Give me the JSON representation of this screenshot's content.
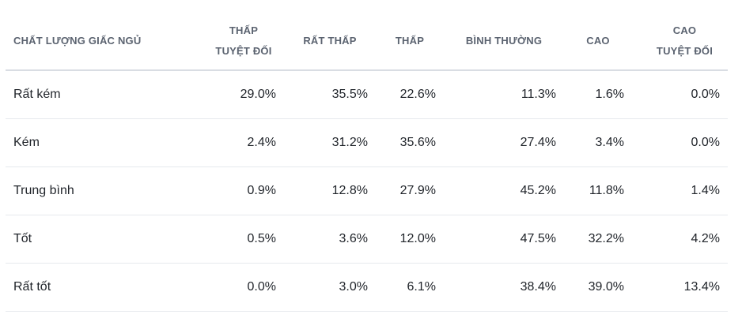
{
  "table": {
    "headers": [
      {
        "line1": "CHẤT LƯỢNG GIẤC NGỦ",
        "line2": ""
      },
      {
        "line1": "THẤP",
        "line2": "TUYỆT ĐỐI"
      },
      {
        "line1": "RẤT THẤP",
        "line2": ""
      },
      {
        "line1": "THẤP",
        "line2": ""
      },
      {
        "line1": "BÌNH THƯỜNG",
        "line2": ""
      },
      {
        "line1": "CAO",
        "line2": ""
      },
      {
        "line1": "CAO",
        "line2": "TUYỆT ĐỐI"
      }
    ],
    "rows": [
      {
        "label": "Rất kém",
        "cells": [
          "29.0%",
          "35.5%",
          "22.6%",
          "11.3%",
          "1.6%",
          "0.0%"
        ]
      },
      {
        "label": "Kém",
        "cells": [
          "2.4%",
          "31.2%",
          "35.6%",
          "27.4%",
          "3.4%",
          "0.0%"
        ]
      },
      {
        "label": "Trung bình",
        "cells": [
          "0.9%",
          "12.8%",
          "27.9%",
          "45.2%",
          "11.8%",
          "1.4%"
        ]
      },
      {
        "label": "Tốt",
        "cells": [
          "0.5%",
          "3.6%",
          "12.0%",
          "47.5%",
          "32.2%",
          "4.2%"
        ]
      },
      {
        "label": "Rất tốt",
        "cells": [
          "0.0%",
          "3.0%",
          "6.1%",
          "38.4%",
          "39.0%",
          "13.4%"
        ]
      }
    ]
  }
}
